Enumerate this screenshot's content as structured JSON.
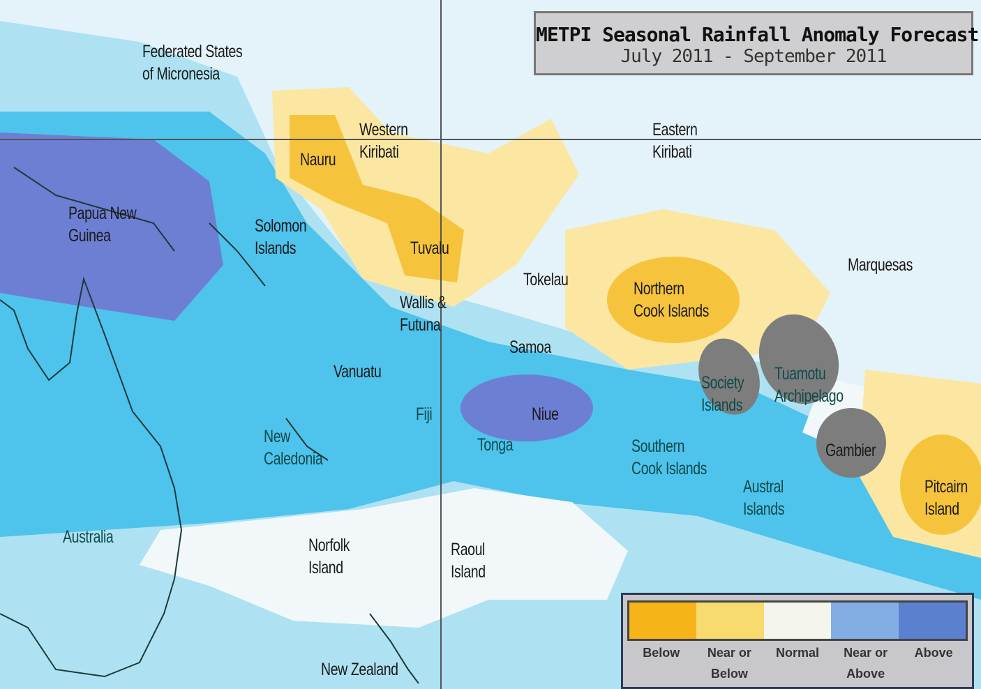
{
  "title": {
    "line1": "METPI Seasonal Rainfall Anomaly Forecast",
    "line2": "July 2011 - September 2011"
  },
  "legend": {
    "items": [
      {
        "label": "Below",
        "color": "#f7b418"
      },
      {
        "label": "Near or\nBelow",
        "color": "#f7db6e"
      },
      {
        "label": "Normal",
        "color": "#f4f6ee"
      },
      {
        "label": "Near or\nAbove",
        "color": "#82aee4"
      },
      {
        "label": "Above",
        "color": "#5a80cf"
      }
    ]
  },
  "map_colors": {
    "background": "#e4f3f9",
    "near_above_light": "#aee2f2",
    "near_above": "#4ec3ec",
    "above": "#6d7fd2",
    "near_below": "#fbe7a2",
    "below": "#f6c43c",
    "no_data": "#7d7d7d"
  },
  "labels": {
    "micronesia": "Federated States\nof Micronesia",
    "nauru": "Nauru",
    "western_kiribati": "Western\nKiribati",
    "eastern_kiribati": "Eastern\nKiribati",
    "png": "Papua New\nGuinea",
    "solomon": "Solomon\nIslands",
    "tuvalu": "Tuvalu",
    "tokelau": "Tokelau",
    "northern_cook": "Northern\nCook Islands",
    "marquesas": "Marquesas",
    "wallis": "Wallis &\nFutuna",
    "samoa": "Samoa",
    "society": "Society\nIslands",
    "tuamotu": "Tuamotu\nArchipelago",
    "vanuatu": "Vanuatu",
    "fiji": "Fiji",
    "niue": "Niue",
    "tonga": "Tonga",
    "new_caledonia": "New\nCaledonia",
    "southern_cook": "Southern\nCook Islands",
    "gambier": "Gambier",
    "austral": "Austral\nIslands",
    "pitcairn": "Pitcairn\nIsland",
    "australia": "Australia",
    "norfolk": "Norfolk\nIsland",
    "raoul": "Raoul\nIsland",
    "new_zealand": "New Zealand"
  }
}
